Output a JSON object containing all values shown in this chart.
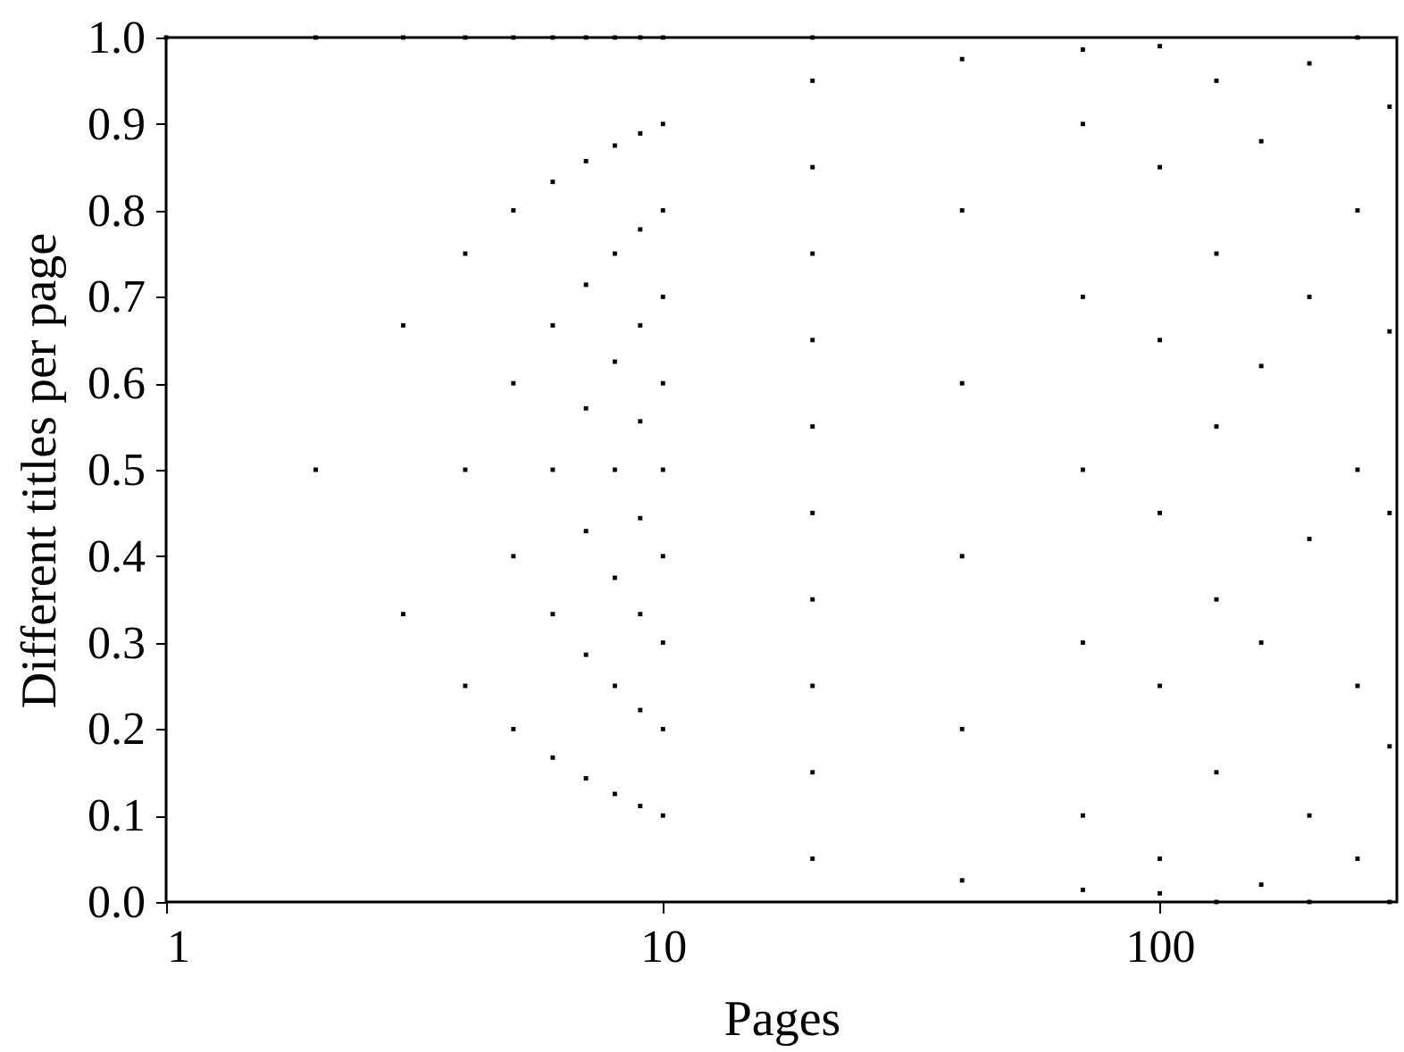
{
  "chart_data": {
    "type": "scatter",
    "xlabel": "Pages",
    "ylabel": "Different titles per page",
    "log": "x",
    "grid": false,
    "marker": "square",
    "xlim": [
      1,
      300
    ],
    "xticks": [
      1,
      10,
      100
    ],
    "ylim": [
      0,
      1
    ],
    "yticks": [
      {
        "value": 0,
        "label": "0.0"
      },
      0.1,
      0.2,
      0.3,
      0.4,
      0.5,
      0.6,
      0.7,
      0.8,
      0.9,
      {
        "value": 1,
        "label": "1.0"
      }
    ],
    "series": [
      {
        "color": "#000000",
        "x": [
          1,
          2,
          2,
          3,
          3,
          3,
          4,
          4,
          4,
          4,
          5,
          5,
          5,
          5,
          5,
          6,
          6,
          6,
          6,
          6,
          6,
          7,
          7,
          7,
          7,
          7,
          7,
          7,
          8,
          8,
          8,
          8,
          8,
          8,
          8,
          8,
          9,
          9,
          9,
          9,
          9,
          9,
          9,
          9,
          9,
          10,
          10,
          10,
          10,
          10,
          10,
          10,
          10,
          10,
          10,
          20,
          20,
          20,
          20,
          20,
          20,
          20,
          20,
          20,
          20,
          20,
          40,
          40,
          40,
          40,
          40,
          40,
          70,
          70,
          70,
          70,
          70,
          70,
          70,
          100,
          100,
          100,
          100,
          100,
          100,
          100,
          130,
          130,
          130,
          130,
          130,
          130,
          160,
          160,
          160,
          160,
          200,
          200,
          200,
          200,
          200,
          250,
          250,
          250,
          250,
          250,
          290,
          290,
          290,
          290,
          290
        ],
        "values": [
          1,
          0.5,
          1,
          0.333,
          0.667,
          1,
          0.25,
          0.5,
          0.75,
          1,
          0.2,
          0.4,
          0.6,
          0.8,
          1,
          0.167,
          0.333,
          0.5,
          0.667,
          0.833,
          1,
          0.143,
          0.286,
          0.429,
          0.571,
          0.714,
          0.857,
          1,
          0.125,
          0.25,
          0.375,
          0.5,
          0.625,
          0.75,
          0.875,
          1,
          0.111,
          0.222,
          0.333,
          0.444,
          0.556,
          0.667,
          0.778,
          0.889,
          1,
          0.1,
          0.2,
          0.3,
          0.4,
          0.5,
          0.6,
          0.7,
          0.8,
          0.9,
          1,
          0.05,
          0.15,
          0.25,
          0.35,
          0.45,
          0.55,
          0.65,
          0.75,
          0.85,
          0.95,
          1,
          0.025,
          0.2,
          0.4,
          0.6,
          0.8,
          0.975,
          0.014,
          0.1,
          0.3,
          0.5,
          0.7,
          0.9,
          0.986,
          0.01,
          0.05,
          0.25,
          0.45,
          0.65,
          0.85,
          0.99,
          0,
          0.15,
          0.35,
          0.55,
          0.75,
          0.95,
          0.02,
          0.3,
          0.62,
          0.88,
          0,
          0.1,
          0.42,
          0.7,
          0.97,
          0.05,
          0.25,
          0.5,
          0.8,
          1,
          0,
          0.18,
          0.45,
          0.66,
          0.92
        ]
      }
    ]
  }
}
